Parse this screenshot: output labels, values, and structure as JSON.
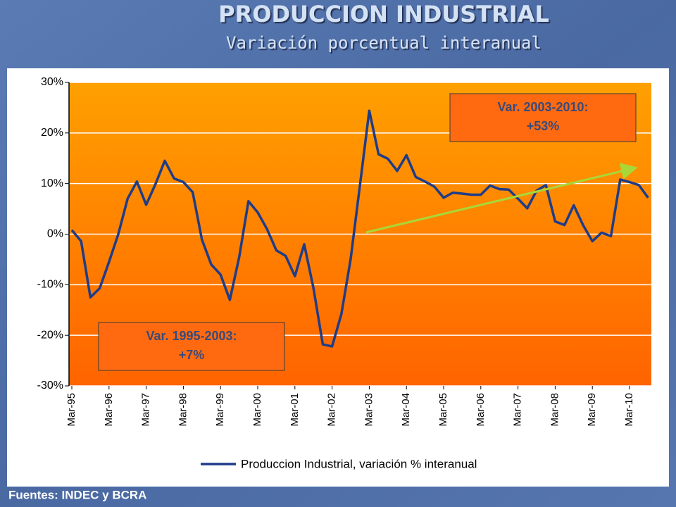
{
  "chart_data": {
    "type": "line",
    "title": "PRODUCCION INDUSTRIAL",
    "subtitle": "Variación porcentual interanual",
    "source": "Fuentes: INDEC y BCRA",
    "categories": [
      "Mar-95",
      null,
      null,
      null,
      "Mar-96",
      null,
      null,
      null,
      "Mar-97",
      null,
      null,
      null,
      "Mar-98",
      null,
      null,
      null,
      "Mar-99",
      null,
      null,
      null,
      "Mar-00",
      null,
      null,
      null,
      "Mar-01",
      null,
      null,
      null,
      "Mar-02",
      null,
      null,
      null,
      "Mar-03",
      null,
      null,
      null,
      "Mar-04",
      null,
      null,
      null,
      "Mar-05",
      null,
      null,
      null,
      "Mar-06",
      null,
      null,
      null,
      "Mar-07",
      null,
      null,
      null,
      "Mar-08",
      null,
      null,
      null,
      "Mar-09",
      null,
      null,
      null,
      "Mar-10",
      null,
      null
    ],
    "series": [
      {
        "name": "Produccion Industrial, variación % interanual",
        "color": "#1f3c88",
        "values": [
          0.8,
          -1.4,
          -12.5,
          -10.7,
          -5.5,
          0,
          7,
          10.4,
          5.8,
          9.9,
          14.5,
          11,
          10.3,
          8.3,
          -1.1,
          -6,
          -8,
          -13,
          -4.6,
          6.5,
          4.3,
          1,
          -3.2,
          -4.3,
          -8.3,
          -2,
          -10.7,
          -21.8,
          -22.2,
          -15.8,
          -4.9,
          9.7,
          24.4,
          15.8,
          14.9,
          12.5,
          15.6,
          11.3,
          10.4,
          9.4,
          7.2,
          8.2,
          8,
          7.8,
          7.8,
          9.6,
          8.9,
          8.8,
          7,
          5.1,
          8.6,
          9.7,
          2.5,
          1.8,
          5.7,
          1.8,
          -1.4,
          0.3,
          -0.4,
          10.8,
          10.3,
          9.7,
          7.2
        ]
      }
    ],
    "ylim": [
      -30,
      30
    ],
    "yticks": [
      {
        "value": -30,
        "label": "-30%"
      },
      {
        "value": -20,
        "label": "-20%"
      },
      {
        "value": -10,
        "label": "-10%"
      },
      {
        "value": 0,
        "label": "0%"
      },
      {
        "value": 10,
        "label": "10%"
      },
      {
        "value": 20,
        "label": "20%"
      },
      {
        "value": 30,
        "label": "30%"
      }
    ],
    "grid": true,
    "legend": "bottom",
    "annotations": [
      {
        "lines": [
          "Var. 1995-2003:",
          "+7%"
        ]
      },
      {
        "lines": [
          "Var. 2003-2010:",
          "+53%"
        ]
      }
    ]
  }
}
